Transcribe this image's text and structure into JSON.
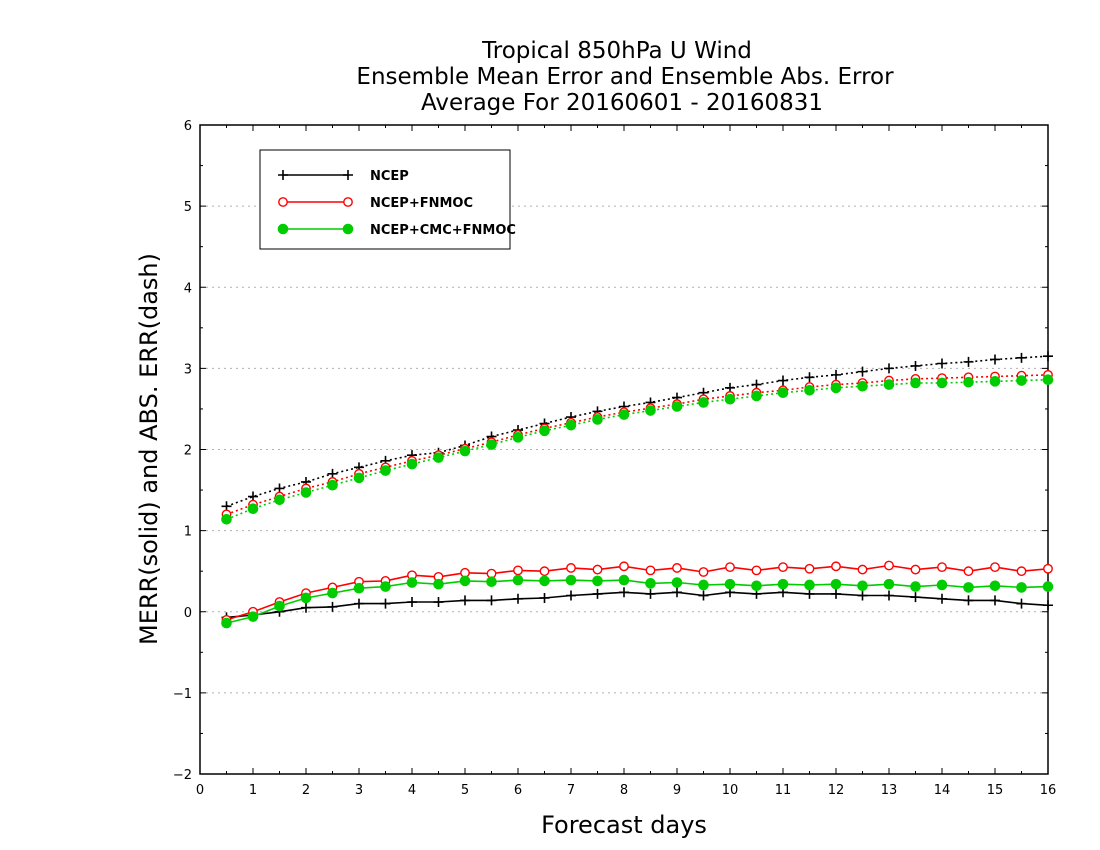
{
  "chart_data": {
    "type": "line",
    "title_lines": [
      "Tropical 850hPa U Wind",
      "Ensemble Mean Error and Ensemble Abs. Error",
      "Average For 20160601 - 20160831"
    ],
    "xlabel": "Forecast days",
    "ylabel": "MERR(solid) and ABS. ERR(dash)",
    "xlim": [
      0,
      16
    ],
    "ylim": [
      -2,
      6
    ],
    "xticks": [
      0,
      1,
      2,
      3,
      4,
      5,
      6,
      7,
      8,
      9,
      10,
      11,
      12,
      13,
      14,
      15,
      16
    ],
    "yticks": [
      -2,
      -1,
      0,
      1,
      2,
      3,
      4,
      5,
      6
    ],
    "ytick_labels": [
      "−2",
      "−1",
      "0",
      "1",
      "2",
      "3",
      "4",
      "5",
      "6"
    ],
    "grid": "horizontal dotted",
    "legend_position": "top-left",
    "x": [
      0.5,
      1.0,
      1.5,
      2.0,
      2.5,
      3.0,
      3.5,
      4.0,
      4.5,
      5.0,
      5.5,
      6.0,
      6.5,
      7.0,
      7.5,
      8.0,
      8.5,
      9.0,
      9.5,
      10.0,
      10.5,
      11.0,
      11.5,
      12.0,
      12.5,
      13.0,
      13.5,
      14.0,
      14.5,
      15.0,
      15.5,
      16.0
    ],
    "series": [
      {
        "name": "NCEP",
        "color": "#000000",
        "marker": "plus",
        "merr": [
          -0.07,
          -0.04,
          0.0,
          0.05,
          0.06,
          0.1,
          0.1,
          0.12,
          0.12,
          0.14,
          0.14,
          0.16,
          0.17,
          0.2,
          0.22,
          0.24,
          0.22,
          0.24,
          0.2,
          0.24,
          0.22,
          0.24,
          0.22,
          0.22,
          0.2,
          0.2,
          0.18,
          0.16,
          0.14,
          0.14,
          0.1,
          0.08
        ],
        "abs_err": [
          1.3,
          1.42,
          1.52,
          1.6,
          1.7,
          1.78,
          1.86,
          1.93,
          1.96,
          2.05,
          2.16,
          2.24,
          2.32,
          2.4,
          2.47,
          2.53,
          2.58,
          2.64,
          2.7,
          2.76,
          2.8,
          2.85,
          2.89,
          2.92,
          2.96,
          3.0,
          3.03,
          3.06,
          3.08,
          3.11,
          3.13,
          3.15
        ]
      },
      {
        "name": "NCEP+FNMOC",
        "color": "#ff0000",
        "marker": "open-circle",
        "merr": [
          -0.1,
          0.0,
          0.12,
          0.23,
          0.3,
          0.37,
          0.38,
          0.45,
          0.43,
          0.48,
          0.47,
          0.51,
          0.5,
          0.54,
          0.52,
          0.56,
          0.51,
          0.54,
          0.49,
          0.55,
          0.51,
          0.55,
          0.53,
          0.56,
          0.52,
          0.57,
          0.52,
          0.55,
          0.5,
          0.55,
          0.5,
          0.53
        ],
        "abs_err": [
          1.2,
          1.32,
          1.42,
          1.52,
          1.6,
          1.7,
          1.78,
          1.86,
          1.93,
          2.01,
          2.09,
          2.18,
          2.26,
          2.33,
          2.4,
          2.46,
          2.51,
          2.56,
          2.62,
          2.66,
          2.7,
          2.73,
          2.77,
          2.8,
          2.82,
          2.85,
          2.87,
          2.88,
          2.89,
          2.9,
          2.91,
          2.92
        ]
      },
      {
        "name": "NCEP+CMC+FNMOC",
        "color": "#00cc00",
        "marker": "filled-circle",
        "merr": [
          -0.14,
          -0.06,
          0.07,
          0.17,
          0.23,
          0.29,
          0.31,
          0.36,
          0.34,
          0.38,
          0.37,
          0.39,
          0.38,
          0.39,
          0.38,
          0.39,
          0.35,
          0.36,
          0.33,
          0.34,
          0.32,
          0.34,
          0.33,
          0.34,
          0.32,
          0.34,
          0.31,
          0.33,
          0.3,
          0.32,
          0.3,
          0.31
        ],
        "abs_err": [
          1.14,
          1.27,
          1.38,
          1.47,
          1.56,
          1.65,
          1.74,
          1.82,
          1.9,
          1.98,
          2.06,
          2.15,
          2.23,
          2.3,
          2.37,
          2.43,
          2.48,
          2.53,
          2.58,
          2.62,
          2.66,
          2.7,
          2.73,
          2.76,
          2.78,
          2.8,
          2.82,
          2.82,
          2.83,
          2.84,
          2.85,
          2.86
        ]
      }
    ]
  }
}
